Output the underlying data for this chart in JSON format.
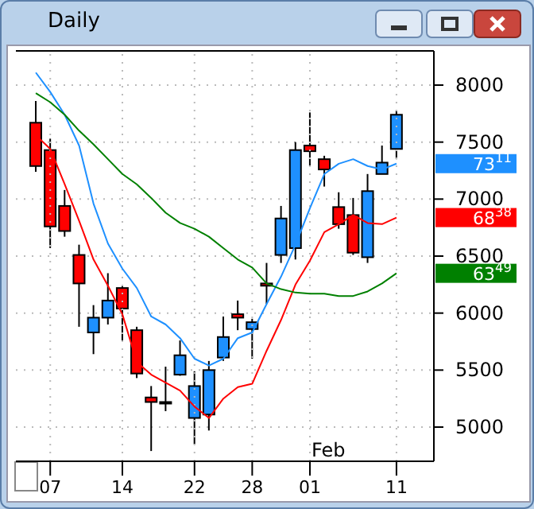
{
  "chart_data": {
    "type": "candlestick",
    "title": "Daily",
    "categories": [
      null,
      "07",
      null,
      null,
      null,
      null,
      "14",
      null,
      null,
      null,
      null,
      "22",
      null,
      null,
      null,
      "28",
      null,
      null,
      null,
      "01",
      null,
      null,
      null,
      null,
      null,
      "11"
    ],
    "ohlc": [
      [
        7670,
        7860,
        7240,
        7290
      ],
      [
        7430,
        7530,
        6570,
        6760
      ],
      [
        6940,
        7080,
        6670,
        6720
      ],
      [
        6510,
        6600,
        5880,
        6260
      ],
      [
        5830,
        6070,
        5640,
        5960
      ],
      [
        5960,
        6350,
        5900,
        6110
      ],
      [
        6220,
        6240,
        5760,
        6040
      ],
      [
        5850,
        5880,
        5430,
        5470
      ],
      [
        5260,
        5360,
        4790,
        5220
      ],
      [
        5220,
        5530,
        5140,
        5210
      ],
      [
        5460,
        5760,
        5450,
        5630
      ],
      [
        5080,
        5490,
        4850,
        5360
      ],
      [
        5110,
        5580,
        4970,
        5500
      ],
      [
        5610,
        5970,
        5580,
        5790
      ],
      [
        5990,
        6110,
        5850,
        5960
      ],
      [
        5860,
        5950,
        5600,
        5920
      ],
      [
        6260,
        6440,
        6080,
        6240
      ],
      [
        6510,
        6940,
        6440,
        6830
      ],
      [
        6570,
        7500,
        6470,
        7430
      ],
      [
        7470,
        7760,
        7290,
        7420
      ],
      [
        7350,
        7380,
        7110,
        7260
      ],
      [
        6930,
        7060,
        6740,
        6780
      ],
      [
        6860,
        7010,
        6510,
        6530
      ],
      [
        6490,
        7220,
        6440,
        7070
      ],
      [
        7220,
        7470,
        7220,
        7320
      ],
      [
        7440,
        7780,
        7350,
        7740
      ]
    ],
    "colors": [
      "#ff0000",
      "#ff0000",
      "#ff0000",
      "#ff0000",
      "#1e90ff",
      "#1e90ff",
      "#ff0000",
      "#ff0000",
      "#ff0000",
      "#ff0000",
      "#1e90ff",
      "#1e90ff",
      "#1e90ff",
      "#1e90ff",
      "#ff0000",
      "#1e90ff",
      "#ff0000",
      "#1e90ff",
      "#1e90ff",
      "#ff0000",
      "#ff0000",
      "#ff0000",
      "#ff0000",
      "#1e90ff",
      "#1e90ff",
      "#1e90ff"
    ],
    "series": [
      {
        "type": "line",
        "color": "#1e90ff",
        "values": [
          8110,
          7940,
          7740,
          7470,
          6960,
          6610,
          6390,
          6220,
          5970,
          5900,
          5780,
          5600,
          5540,
          5600,
          5780,
          5830,
          6080,
          6320,
          6600,
          6920,
          7220,
          7310,
          7350,
          7290,
          7260,
          7311
        ]
      },
      {
        "type": "line",
        "color": "#ff0000",
        "values": [
          7560,
          7440,
          7130,
          6810,
          6470,
          6240,
          5990,
          5570,
          5460,
          5390,
          5320,
          5180,
          5080,
          5250,
          5350,
          5380,
          5670,
          5940,
          6250,
          6460,
          6710,
          6780,
          6860,
          6790,
          6780,
          6838
        ]
      },
      {
        "type": "line",
        "color": "#008000",
        "values": [
          7930,
          7850,
          7740,
          7600,
          7480,
          7350,
          7220,
          7130,
          7010,
          6880,
          6790,
          6740,
          6670,
          6570,
          6470,
          6400,
          6260,
          6210,
          6180,
          6170,
          6170,
          6150,
          6150,
          6190,
          6260,
          6349
        ]
      }
    ],
    "ylim": [
      4700,
      8300
    ],
    "yticks": [
      5000,
      5500,
      6000,
      6500,
      7000,
      7500,
      8000
    ],
    "grid": true,
    "annotations": [
      "Feb",
      "73$^{11}$",
      "68$^{38}$",
      "63$^{49}$"
    ]
  }
}
